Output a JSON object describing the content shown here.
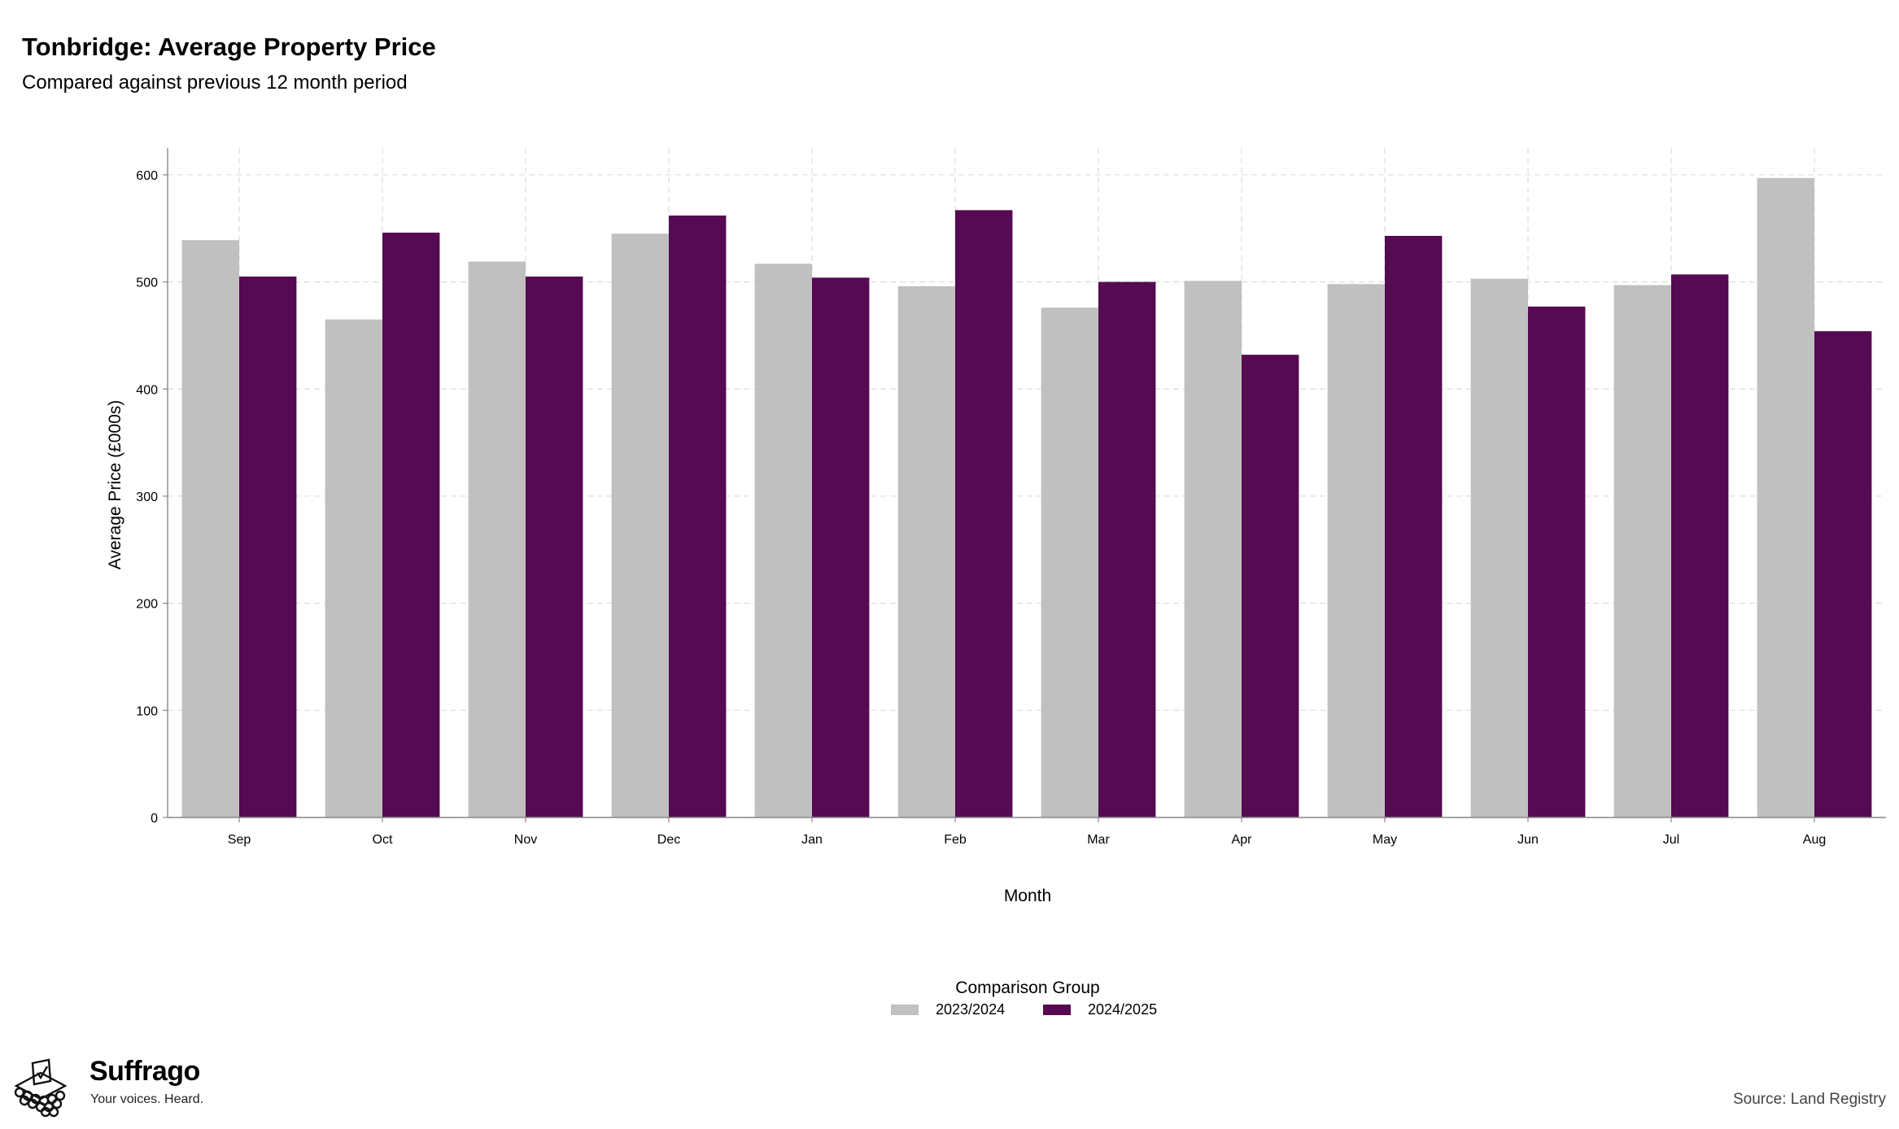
{
  "chart_data": {
    "type": "bar",
    "title": "Tonbridge: Average Property Price",
    "subtitle": "Compared against previous 12 month period",
    "xlabel": "Month",
    "ylabel": "Average Price (£000s)",
    "ylim": [
      0,
      625
    ],
    "yticks": [
      0,
      100,
      200,
      300,
      400,
      500,
      600
    ],
    "grid": true,
    "legend_title": "Comparison Group",
    "legend_position": "bottom",
    "categories": [
      "Sep",
      "Oct",
      "Nov",
      "Dec",
      "Jan",
      "Feb",
      "Mar",
      "Apr",
      "May",
      "Jun",
      "Jul",
      "Aug"
    ],
    "series": [
      {
        "name": "2023/2024",
        "color": "#c0c0c0",
        "values": [
          539,
          465,
          519,
          545,
          517,
          496,
          476,
          501,
          498,
          503,
          497,
          597
        ]
      },
      {
        "name": "2024/2025",
        "color": "#550a52",
        "values": [
          505,
          546,
          505,
          562,
          504,
          567,
          500,
          432,
          543,
          477,
          507,
          454
        ]
      }
    ]
  },
  "branding": {
    "name": "Suffrago",
    "tagline": "Your voices. Heard.",
    "logo_icon": "ballot-box-icon"
  },
  "source": "Source: Land Registry"
}
